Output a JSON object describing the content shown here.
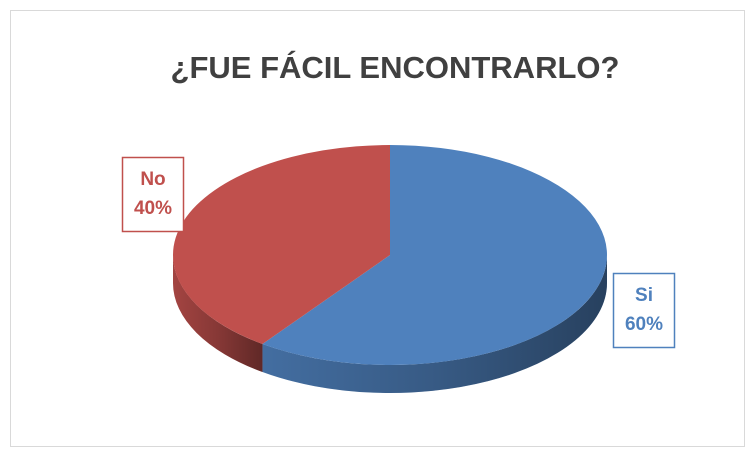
{
  "chart_data": {
    "type": "pie",
    "title": "¿FUE FÁCIL ENCONTRARLO?",
    "categories": [
      "Si",
      "No"
    ],
    "values": [
      60,
      40
    ],
    "value_labels": [
      "60%",
      "40%"
    ],
    "colors": [
      "#4f81bd",
      "#c0504d"
    ]
  }
}
